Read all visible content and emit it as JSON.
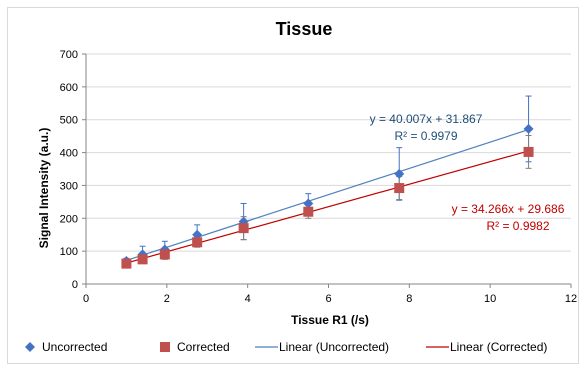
{
  "chart_data": {
    "type": "scatter",
    "title": "Tissue",
    "xlabel": "Tissue R1 (/s)",
    "ylabel": "Signal Intensity (a.u.)",
    "xlim": [
      0,
      12
    ],
    "ylim": [
      0,
      700
    ],
    "xticks": [
      0,
      2,
      4,
      6,
      8,
      10,
      12
    ],
    "yticks": [
      0,
      100,
      200,
      300,
      400,
      500,
      600,
      700
    ],
    "grid": "horizontal",
    "legend_position": "bottom",
    "series": [
      {
        "name": "Uncorrected",
        "marker": "diamond",
        "color": "#4472C4",
        "x": [
          1.0,
          1.4,
          1.95,
          2.75,
          3.9,
          5.5,
          7.75,
          10.95
        ],
        "y": [
          70,
          90,
          105,
          150,
          190,
          245,
          335,
          472
        ],
        "err": [
          8,
          25,
          25,
          30,
          55,
          30,
          80,
          100
        ]
      },
      {
        "name": "Corrected",
        "marker": "square",
        "color": "#C0504D",
        "x": [
          1.0,
          1.4,
          1.95,
          2.75,
          3.9,
          5.5,
          7.75,
          10.95
        ],
        "y": [
          62,
          75,
          90,
          127,
          170,
          220,
          292,
          402
        ],
        "err": [
          6,
          12,
          15,
          15,
          35,
          20,
          35,
          50
        ]
      }
    ],
    "trendlines": [
      {
        "name": "Linear (Uncorrected)",
        "color": "#4F81BD",
        "slope": 40.007,
        "intercept": 31.867,
        "x_range": [
          1.0,
          10.95
        ],
        "equation": "y = 40.007x + 31.867",
        "r2": "R² = 0.9979"
      },
      {
        "name": "Linear (Corrected)",
        "color": "#C00000",
        "slope": 34.266,
        "intercept": 29.686,
        "x_range": [
          1.0,
          10.95
        ],
        "equation": "y = 34.266x + 29.686",
        "r2": "R² = 0.9982"
      }
    ]
  }
}
